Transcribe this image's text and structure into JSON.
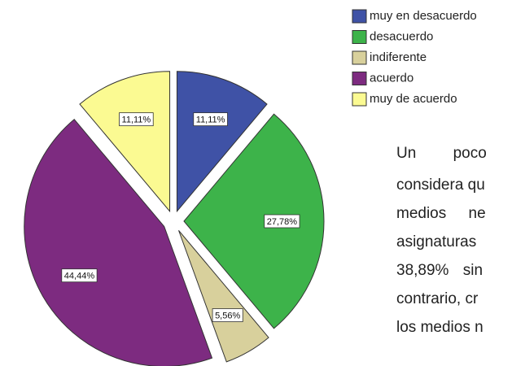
{
  "chart_data": {
    "type": "pie",
    "categories": [
      "muy en desacuerdo",
      "desacuerdo",
      "indiferente",
      "acuerdo",
      "muy de acuerdo"
    ],
    "values": [
      11.11,
      27.78,
      5.56,
      44.44,
      11.11
    ],
    "value_labels": [
      "11,11%",
      "27,78%",
      "5,56%",
      "44,44%",
      "11,11%"
    ],
    "colors": [
      "#3f52a6",
      "#3db34a",
      "#d8d09c",
      "#7d2b80",
      "#fbfa92"
    ]
  },
  "paragraph": {
    "lines": [
      "Un poco",
      "considera qu",
      "medios ne",
      "asignaturas",
      "38,89% sin",
      "contrario, cr",
      "los medios n"
    ]
  }
}
